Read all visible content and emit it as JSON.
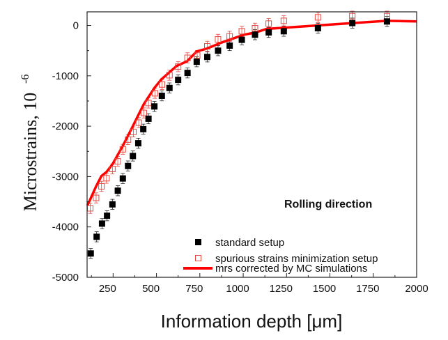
{
  "chart_data": {
    "type": "scatter",
    "xlabel": "Information depth [μm]",
    "ylabel": "Microstrains, 10",
    "ylabel_exponent": "-6",
    "annotation": "Rolling direction",
    "xlim": [
      100,
      2000
    ],
    "ylim": [
      -5000,
      270
    ],
    "xticks": [
      250,
      500,
      750,
      1000,
      1250,
      1500,
      1750,
      2000
    ],
    "yticks": [
      -5000,
      -4000,
      -3000,
      -2000,
      -1000,
      0
    ],
    "grid": false,
    "legend_position": "bottom-right",
    "error": 100,
    "series": [
      {
        "name": "standard setup",
        "marker": "filled-square",
        "color": "#000000",
        "x": [
          121,
          155,
          186,
          215,
          246,
          277,
          306,
          336,
          364,
          395,
          424,
          454,
          488,
          531,
          575,
          625,
          679,
          732,
          793,
          855,
          922,
          992,
          1068,
          1147,
          1234,
          1431,
          1629,
          1829
        ],
        "y": [
          -4527,
          -4196,
          -3934,
          -3778,
          -3552,
          -3281,
          -3038,
          -2790,
          -2592,
          -2339,
          -2059,
          -1852,
          -1608,
          -1397,
          -1241,
          -1080,
          -942,
          -721,
          -625,
          -501,
          -400,
          -285,
          -184,
          -138,
          -115,
          -55,
          47,
          79
        ]
      },
      {
        "name": "spurious strains minimization setup",
        "marker": "open-square",
        "color": "#e8453c",
        "x": [
          118,
          152,
          183,
          212,
          246,
          277,
          306,
          336,
          367,
          398,
          427,
          454,
          491,
          532,
          575,
          625,
          679,
          735,
          793,
          855,
          922,
          992,
          1068,
          1147,
          1234,
          1431,
          1629,
          1829
        ],
        "y": [
          -3630,
          -3424,
          -3194,
          -3033,
          -2849,
          -2698,
          -2459,
          -2266,
          -2114,
          -1930,
          -1737,
          -1540,
          -1347,
          -1172,
          -988,
          -818,
          -643,
          -597,
          -414,
          -276,
          -216,
          -115,
          -55,
          37,
          92,
          161,
          184,
          184
        ]
      },
      {
        "name": "mrs corrected by MC simulations",
        "marker": "line",
        "color": "#ff0000",
        "x": [
          102,
          152,
          183,
          212,
          246,
          306,
          367,
          427,
          488,
          528,
          616,
          676,
          732,
          790,
          871,
          1005,
          1073,
          1135,
          1430,
          1629,
          1829,
          2000
        ],
        "y": [
          -3575,
          -3194,
          -2987,
          -2909,
          -2757,
          -2390,
          -1976,
          -1562,
          -1241,
          -1071,
          -804,
          -712,
          -515,
          -460,
          -345,
          -184,
          -138,
          -69,
          0,
          47,
          92,
          79
        ]
      }
    ]
  }
}
